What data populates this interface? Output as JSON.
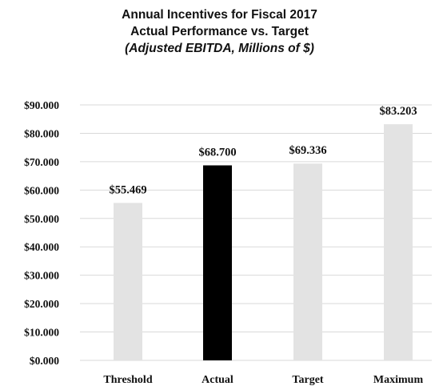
{
  "title": {
    "line1": "Annual Incentives for Fiscal 2017",
    "line2": "Actual Performance vs. Target",
    "line3": "(Adjusted EBITDA, Millions of $)"
  },
  "chart_data": {
    "type": "bar",
    "title": "Annual Incentives for Fiscal 2017 Actual Performance vs. Target (Adjusted EBITDA, Millions of $)",
    "categories": [
      "Threshold",
      "Actual",
      "Target",
      "Maximum"
    ],
    "values": [
      55.469,
      68.7,
      69.336,
      83.203
    ],
    "data_labels": [
      "$55.469",
      "$68.700",
      "$69.336",
      "$83.203"
    ],
    "bar_colors": [
      "#e3e3e3",
      "#000000",
      "#e3e3e3",
      "#e3e3e3"
    ],
    "ylim": [
      0,
      90
    ],
    "yticks": [
      0,
      10,
      20,
      30,
      40,
      50,
      60,
      70,
      80,
      90
    ],
    "ytick_labels": [
      "$0.000",
      "$10.000",
      "$20.000",
      "$30.000",
      "$40.000",
      "$50.000",
      "$60.000",
      "$70.000",
      "$80.000",
      "$90.000"
    ],
    "xlabel": "",
    "ylabel": "",
    "grid": true,
    "gridline_color": "#d9d9d9",
    "legend": "none"
  }
}
